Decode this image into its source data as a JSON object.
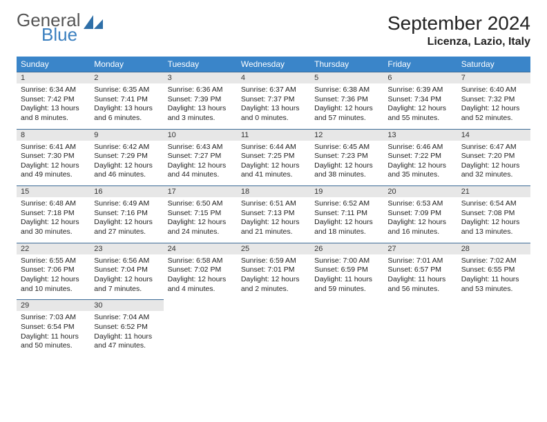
{
  "logo": {
    "word1": "General",
    "word2": "Blue"
  },
  "title": {
    "month": "September 2024",
    "location": "Licenza, Lazio, Italy"
  },
  "colors": {
    "header_bg": "#3a85c9",
    "header_text": "#ffffff",
    "daynum_bg": "#e7e7e7",
    "daynum_border": "#3a6a96",
    "body_bg": "#ffffff",
    "text": "#222222",
    "logo_gray": "#555555",
    "logo_blue": "#3a7fbf"
  },
  "typography": {
    "month_fontsize": 28,
    "location_fontsize": 16,
    "dayheader_fontsize": 12,
    "daynum_fontsize": 11,
    "body_fontsize": 10.5
  },
  "day_headers": [
    "Sunday",
    "Monday",
    "Tuesday",
    "Wednesday",
    "Thursday",
    "Friday",
    "Saturday"
  ],
  "weeks": [
    [
      {
        "n": "1",
        "sr": "Sunrise: 6:34 AM",
        "ss": "Sunset: 7:42 PM",
        "dl": "Daylight: 13 hours and 8 minutes."
      },
      {
        "n": "2",
        "sr": "Sunrise: 6:35 AM",
        "ss": "Sunset: 7:41 PM",
        "dl": "Daylight: 13 hours and 6 minutes."
      },
      {
        "n": "3",
        "sr": "Sunrise: 6:36 AM",
        "ss": "Sunset: 7:39 PM",
        "dl": "Daylight: 13 hours and 3 minutes."
      },
      {
        "n": "4",
        "sr": "Sunrise: 6:37 AM",
        "ss": "Sunset: 7:37 PM",
        "dl": "Daylight: 13 hours and 0 minutes."
      },
      {
        "n": "5",
        "sr": "Sunrise: 6:38 AM",
        "ss": "Sunset: 7:36 PM",
        "dl": "Daylight: 12 hours and 57 minutes."
      },
      {
        "n": "6",
        "sr": "Sunrise: 6:39 AM",
        "ss": "Sunset: 7:34 PM",
        "dl": "Daylight: 12 hours and 55 minutes."
      },
      {
        "n": "7",
        "sr": "Sunrise: 6:40 AM",
        "ss": "Sunset: 7:32 PM",
        "dl": "Daylight: 12 hours and 52 minutes."
      }
    ],
    [
      {
        "n": "8",
        "sr": "Sunrise: 6:41 AM",
        "ss": "Sunset: 7:30 PM",
        "dl": "Daylight: 12 hours and 49 minutes."
      },
      {
        "n": "9",
        "sr": "Sunrise: 6:42 AM",
        "ss": "Sunset: 7:29 PM",
        "dl": "Daylight: 12 hours and 46 minutes."
      },
      {
        "n": "10",
        "sr": "Sunrise: 6:43 AM",
        "ss": "Sunset: 7:27 PM",
        "dl": "Daylight: 12 hours and 44 minutes."
      },
      {
        "n": "11",
        "sr": "Sunrise: 6:44 AM",
        "ss": "Sunset: 7:25 PM",
        "dl": "Daylight: 12 hours and 41 minutes."
      },
      {
        "n": "12",
        "sr": "Sunrise: 6:45 AM",
        "ss": "Sunset: 7:23 PM",
        "dl": "Daylight: 12 hours and 38 minutes."
      },
      {
        "n": "13",
        "sr": "Sunrise: 6:46 AM",
        "ss": "Sunset: 7:22 PM",
        "dl": "Daylight: 12 hours and 35 minutes."
      },
      {
        "n": "14",
        "sr": "Sunrise: 6:47 AM",
        "ss": "Sunset: 7:20 PM",
        "dl": "Daylight: 12 hours and 32 minutes."
      }
    ],
    [
      {
        "n": "15",
        "sr": "Sunrise: 6:48 AM",
        "ss": "Sunset: 7:18 PM",
        "dl": "Daylight: 12 hours and 30 minutes."
      },
      {
        "n": "16",
        "sr": "Sunrise: 6:49 AM",
        "ss": "Sunset: 7:16 PM",
        "dl": "Daylight: 12 hours and 27 minutes."
      },
      {
        "n": "17",
        "sr": "Sunrise: 6:50 AM",
        "ss": "Sunset: 7:15 PM",
        "dl": "Daylight: 12 hours and 24 minutes."
      },
      {
        "n": "18",
        "sr": "Sunrise: 6:51 AM",
        "ss": "Sunset: 7:13 PM",
        "dl": "Daylight: 12 hours and 21 minutes."
      },
      {
        "n": "19",
        "sr": "Sunrise: 6:52 AM",
        "ss": "Sunset: 7:11 PM",
        "dl": "Daylight: 12 hours and 18 minutes."
      },
      {
        "n": "20",
        "sr": "Sunrise: 6:53 AM",
        "ss": "Sunset: 7:09 PM",
        "dl": "Daylight: 12 hours and 16 minutes."
      },
      {
        "n": "21",
        "sr": "Sunrise: 6:54 AM",
        "ss": "Sunset: 7:08 PM",
        "dl": "Daylight: 12 hours and 13 minutes."
      }
    ],
    [
      {
        "n": "22",
        "sr": "Sunrise: 6:55 AM",
        "ss": "Sunset: 7:06 PM",
        "dl": "Daylight: 12 hours and 10 minutes."
      },
      {
        "n": "23",
        "sr": "Sunrise: 6:56 AM",
        "ss": "Sunset: 7:04 PM",
        "dl": "Daylight: 12 hours and 7 minutes."
      },
      {
        "n": "24",
        "sr": "Sunrise: 6:58 AM",
        "ss": "Sunset: 7:02 PM",
        "dl": "Daylight: 12 hours and 4 minutes."
      },
      {
        "n": "25",
        "sr": "Sunrise: 6:59 AM",
        "ss": "Sunset: 7:01 PM",
        "dl": "Daylight: 12 hours and 2 minutes."
      },
      {
        "n": "26",
        "sr": "Sunrise: 7:00 AM",
        "ss": "Sunset: 6:59 PM",
        "dl": "Daylight: 11 hours and 59 minutes."
      },
      {
        "n": "27",
        "sr": "Sunrise: 7:01 AM",
        "ss": "Sunset: 6:57 PM",
        "dl": "Daylight: 11 hours and 56 minutes."
      },
      {
        "n": "28",
        "sr": "Sunrise: 7:02 AM",
        "ss": "Sunset: 6:55 PM",
        "dl": "Daylight: 11 hours and 53 minutes."
      }
    ],
    [
      {
        "n": "29",
        "sr": "Sunrise: 7:03 AM",
        "ss": "Sunset: 6:54 PM",
        "dl": "Daylight: 11 hours and 50 minutes."
      },
      {
        "n": "30",
        "sr": "Sunrise: 7:04 AM",
        "ss": "Sunset: 6:52 PM",
        "dl": "Daylight: 11 hours and 47 minutes."
      },
      null,
      null,
      null,
      null,
      null
    ]
  ]
}
